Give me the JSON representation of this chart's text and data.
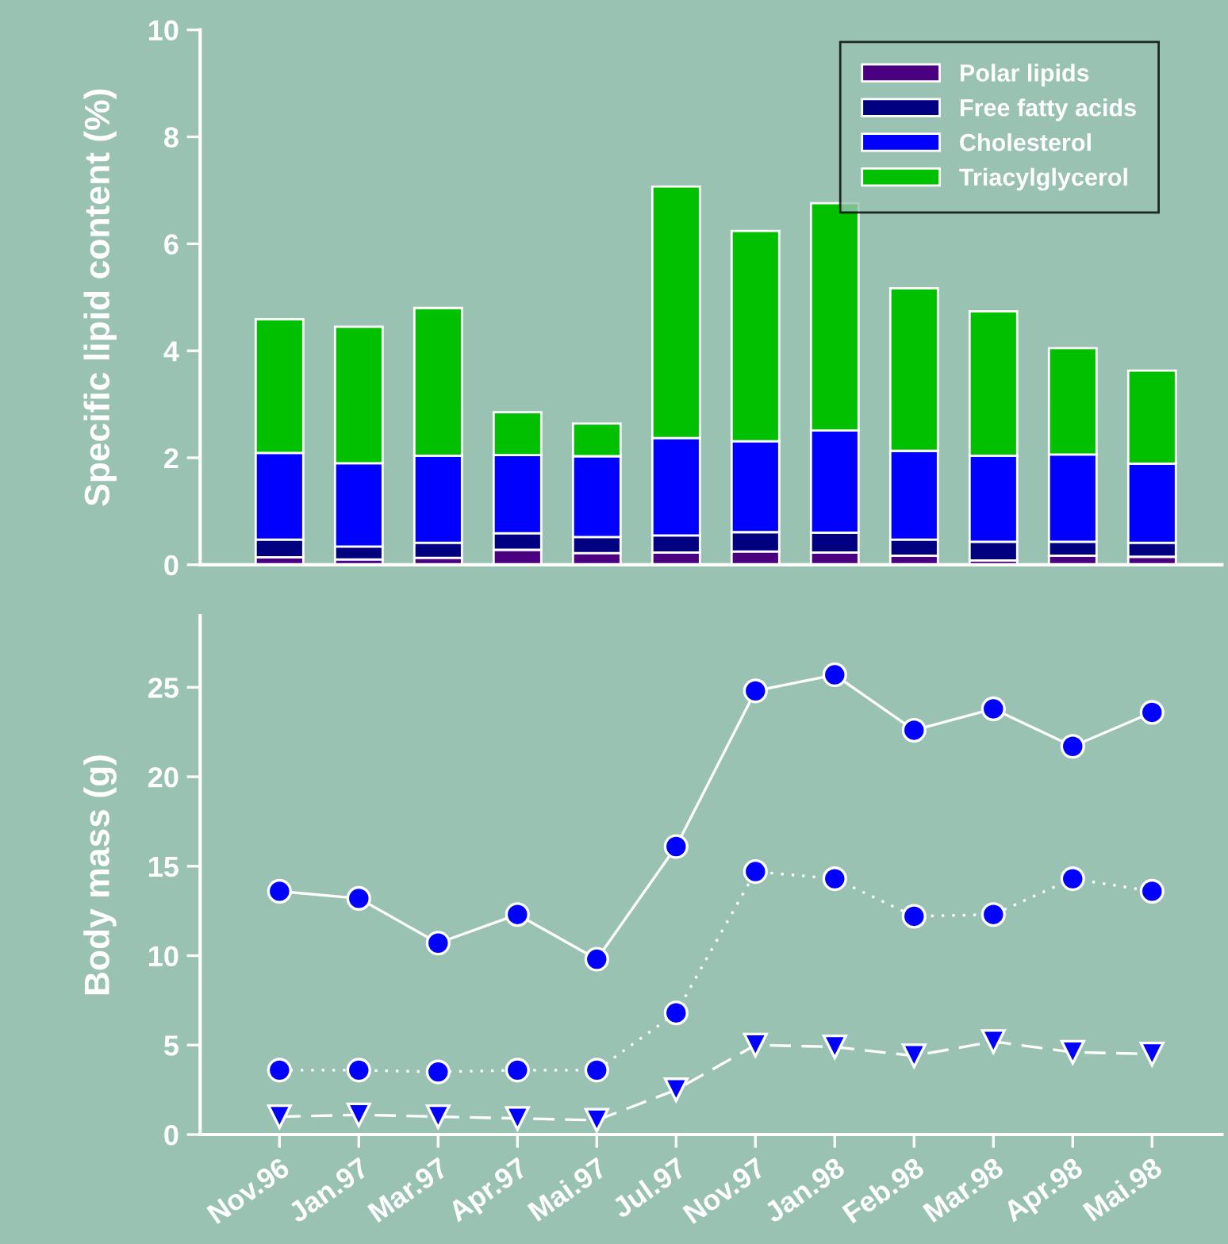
{
  "chart_data": [
    {
      "type": "bar",
      "stacked": true,
      "ylabel": "Specific lipid content (%)",
      "categories": [
        null,
        null,
        null,
        null,
        null,
        null,
        null,
        null,
        null,
        null,
        null,
        null
      ],
      "ylim": [
        0,
        10
      ],
      "yticks": [
        0,
        2,
        4,
        6,
        8,
        10
      ],
      "tick_labels": "y",
      "grid": false,
      "legend": "top right",
      "series": [
        {
          "name": "Polar lipids",
          "color": "#4b0082",
          "values": [
            0.14,
            0.1,
            0.13,
            0.28,
            0.22,
            0.23,
            0.25,
            0.23,
            0.17,
            0.08,
            0.17,
            0.15
          ]
        },
        {
          "name": "Free fatty acids",
          "color": "#000080",
          "values": [
            0.33,
            0.24,
            0.28,
            0.31,
            0.3,
            0.32,
            0.36,
            0.37,
            0.3,
            0.35,
            0.26,
            0.26
          ]
        },
        {
          "name": "Cholesterol",
          "color": "#0000ff",
          "values": [
            1.62,
            1.56,
            1.63,
            1.46,
            1.51,
            1.82,
            1.7,
            1.91,
            1.66,
            1.61,
            1.63,
            1.48
          ]
        },
        {
          "name": "Triacylglycerol",
          "color": "#00c000",
          "values": [
            2.5,
            2.55,
            2.76,
            0.8,
            0.61,
            4.7,
            3.93,
            4.25,
            3.04,
            2.7,
            1.99,
            1.74
          ]
        }
      ]
    },
    {
      "type": "line",
      "ylabel": "Body mass (g)",
      "categories": [
        "Nov.96",
        "Jan.97",
        "Mar.97",
        "Apr.97",
        "Mai.97",
        "Jul.97",
        "Nov.97",
        "Jan.98",
        "Feb.98",
        "Mar.98",
        "Apr.98",
        "Mai.98"
      ],
      "ylim": [
        0,
        29
      ],
      "yticks": [
        0,
        5,
        10,
        15,
        20,
        25
      ],
      "grid": false,
      "legend": false,
      "series": [
        {
          "color": "#0000ff",
          "marker": "circle",
          "line_style": "solid",
          "values": [
            13.6,
            13.2,
            10.7,
            12.3,
            9.8,
            16.1,
            24.8,
            25.7,
            22.6,
            23.8,
            21.7,
            23.6
          ]
        },
        {
          "color": "#0000ff",
          "marker": "circle",
          "line_style": "dotted",
          "values": [
            3.6,
            3.6,
            3.5,
            3.6,
            3.6,
            6.8,
            14.7,
            14.3,
            12.2,
            12.3,
            14.3,
            13.6
          ]
        },
        {
          "color": "#0000ff",
          "marker": "triangle",
          "line_style": "dashed",
          "values": [
            1.0,
            1.1,
            1.0,
            0.9,
            0.8,
            2.5,
            5.0,
            4.9,
            4.4,
            5.2,
            4.6,
            4.5
          ]
        }
      ]
    }
  ]
}
